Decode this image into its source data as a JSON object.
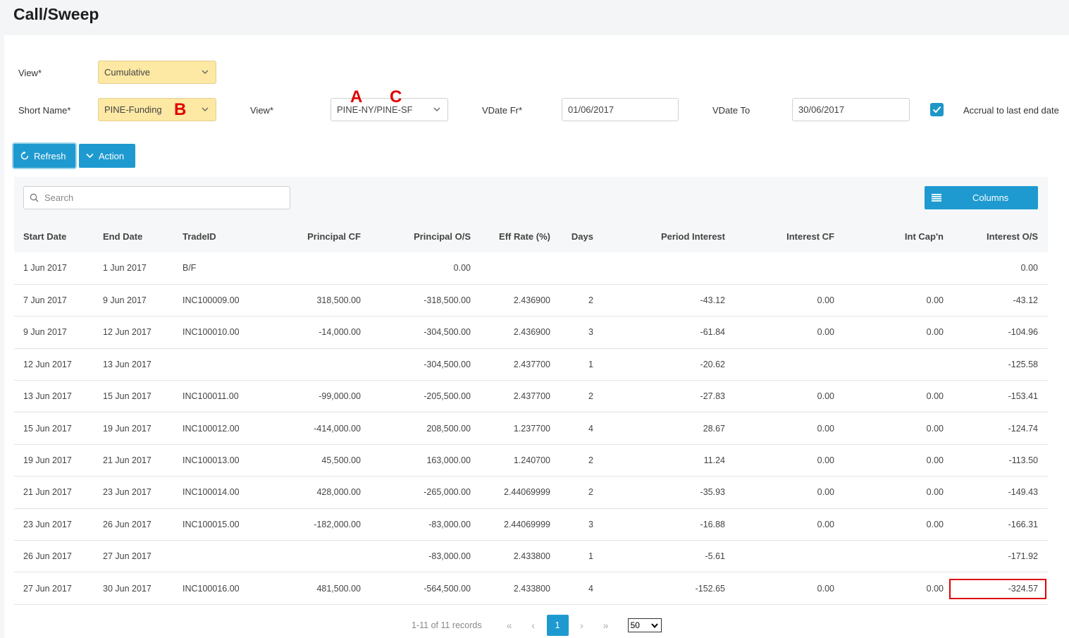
{
  "page": {
    "title": "Call/Sweep"
  },
  "filters": {
    "view_label": "View*",
    "view_value": "Cumulative",
    "short_name_label": "Short Name*",
    "short_name_value": "PINE-Funding",
    "view2_label": "View*",
    "view2_value": "PINE-NY/PINE-SF",
    "vdate_from_label": "VDate Fr*",
    "vdate_from_value": "01/06/2017",
    "vdate_to_label": "VDate To",
    "vdate_to_value": "30/06/2017",
    "accrual_label": "Accrual to last end date",
    "accrual_checked": true
  },
  "annotations": {
    "a": "A",
    "b": "B",
    "c": "C"
  },
  "toolbar": {
    "refresh_label": "Refresh",
    "action_label": "Action"
  },
  "grid": {
    "search_placeholder": "Search",
    "columns_label": "Columns",
    "headers": [
      "Start Date",
      "End Date",
      "TradeID",
      "Principal CF",
      "Principal O/S",
      "Eff Rate (%)",
      "Days",
      "Period Interest",
      "Interest CF",
      "Int Cap'n",
      "Interest O/S"
    ],
    "rows": [
      [
        "1 Jun 2017",
        "1 Jun 2017",
        "B/F",
        "",
        "0.00",
        "",
        "",
        "",
        "",
        "",
        "0.00"
      ],
      [
        "7 Jun 2017",
        "9 Jun 2017",
        "INC100009.00",
        "318,500.00",
        "-318,500.00",
        "2.436900",
        "2",
        "-43.12",
        "0.00",
        "0.00",
        "-43.12"
      ],
      [
        "9 Jun 2017",
        "12 Jun 2017",
        "INC100010.00",
        "-14,000.00",
        "-304,500.00",
        "2.436900",
        "3",
        "-61.84",
        "0.00",
        "0.00",
        "-104.96"
      ],
      [
        "12 Jun 2017",
        "13 Jun 2017",
        "",
        "",
        "-304,500.00",
        "2.437700",
        "1",
        "-20.62",
        "",
        "",
        "-125.58"
      ],
      [
        "13 Jun 2017",
        "15 Jun 2017",
        "INC100011.00",
        "-99,000.00",
        "-205,500.00",
        "2.437700",
        "2",
        "-27.83",
        "0.00",
        "0.00",
        "-153.41"
      ],
      [
        "15 Jun 2017",
        "19 Jun 2017",
        "INC100012.00",
        "-414,000.00",
        "208,500.00",
        "1.237700",
        "4",
        "28.67",
        "0.00",
        "0.00",
        "-124.74"
      ],
      [
        "19 Jun 2017",
        "21 Jun 2017",
        "INC100013.00",
        "45,500.00",
        "163,000.00",
        "1.240700",
        "2",
        "11.24",
        "0.00",
        "0.00",
        "-113.50"
      ],
      [
        "21 Jun 2017",
        "23 Jun 2017",
        "INC100014.00",
        "428,000.00",
        "-265,000.00",
        "2.44069999",
        "2",
        "-35.93",
        "0.00",
        "0.00",
        "-149.43"
      ],
      [
        "23 Jun 2017",
        "26 Jun 2017",
        "INC100015.00",
        "-182,000.00",
        "-83,000.00",
        "2.44069999",
        "3",
        "-16.88",
        "0.00",
        "0.00",
        "-166.31"
      ],
      [
        "26 Jun 2017",
        "27 Jun 2017",
        "",
        "",
        "-83,000.00",
        "2.433800",
        "1",
        "-5.61",
        "",
        "",
        "-171.92"
      ],
      [
        "27 Jun 2017",
        "30 Jun 2017",
        "INC100016.00",
        "481,500.00",
        "-564,500.00",
        "2.433800",
        "4",
        "-152.65",
        "0.00",
        "0.00",
        "-324.57"
      ]
    ]
  },
  "pagination": {
    "records": "1-11 of 11 records",
    "first": "«",
    "prev": "‹",
    "current_page": "1",
    "next": "›",
    "last": "»",
    "page_size": "50"
  },
  "colors": {
    "accent": "#1e9ad0",
    "highlight": "#fde8a4",
    "annotation": "#e00000"
  }
}
